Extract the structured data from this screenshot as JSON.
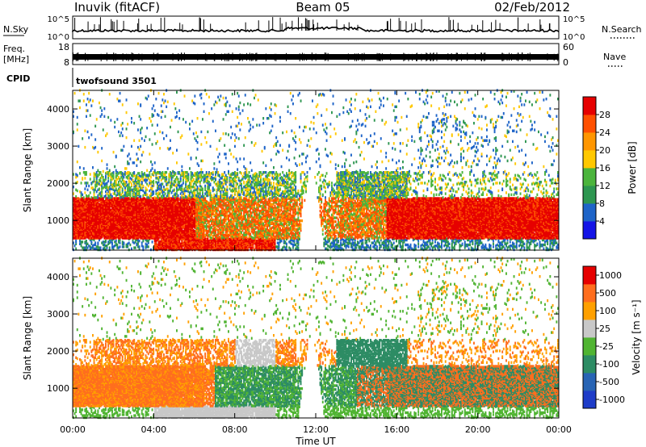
{
  "header": {
    "station": "Inuvik (fitACF)",
    "beam": "Beam 05",
    "date": "02/Feb/2012"
  },
  "noise_panel": {
    "left_label": "N.Sky",
    "left_ticks": [
      "10^5",
      "10^0"
    ],
    "right_label": "N.Search",
    "right_ticks": [
      "10^5",
      "10^0"
    ]
  },
  "freq_panel": {
    "left_label_1": "Freq.",
    "left_label_2": "[MHz]",
    "left_ticks": [
      "18",
      "8"
    ],
    "right_label": "Nave",
    "right_ticks": [
      "60",
      "0"
    ]
  },
  "cpid": {
    "label": "CPID",
    "value": "twofsound 3501"
  },
  "colors": {
    "power": [
      "#1414e6",
      "#1e64c8",
      "#2d9650",
      "#4bb43c",
      "#ffc800",
      "#ff9600",
      "#ff5000",
      "#e60000"
    ],
    "velocity": [
      "#1e3cc8",
      "#2864b4",
      "#2d8c64",
      "#50b432",
      "#c8c8c8",
      "#ffa000",
      "#ff6e1e",
      "#e60000"
    ],
    "neutral_gray": "#c8c8c8"
  },
  "chart_data": [
    {
      "type": "heatmap",
      "name": "power-panel",
      "x_range_hours": [
        0,
        24
      ],
      "xticks": [
        "00:00",
        "04:00",
        "08:00",
        "12:00",
        "16:00",
        "20:00",
        "00:00"
      ],
      "ylabel": "Slant Range [km]",
      "ylim": [
        200,
        4500
      ],
      "yticks": [
        "1000",
        "2000",
        "3000",
        "4000"
      ],
      "colorbar": {
        "label": "Power [dB]",
        "range": [
          0,
          32
        ],
        "ticks": [
          "4",
          "8",
          "12",
          "16",
          "20",
          "24",
          "28"
        ]
      }
    },
    {
      "type": "heatmap",
      "name": "velocity-panel",
      "x_range_hours": [
        0,
        24
      ],
      "xticks": [
        "00:00",
        "04:00",
        "08:00",
        "12:00",
        "16:00",
        "20:00",
        "00:00"
      ],
      "xlabel": "Time UT",
      "ylabel": "Slant Range [km]",
      "ylim": [
        200,
        4500
      ],
      "yticks": [
        "1000",
        "2000",
        "3000",
        "4000"
      ],
      "colorbar": {
        "label": "Velocity [m s⁻¹]",
        "ticks": [
          "1000",
          "500",
          "100",
          "25",
          "-25",
          "-100",
          "-500",
          "-1000"
        ]
      }
    }
  ]
}
